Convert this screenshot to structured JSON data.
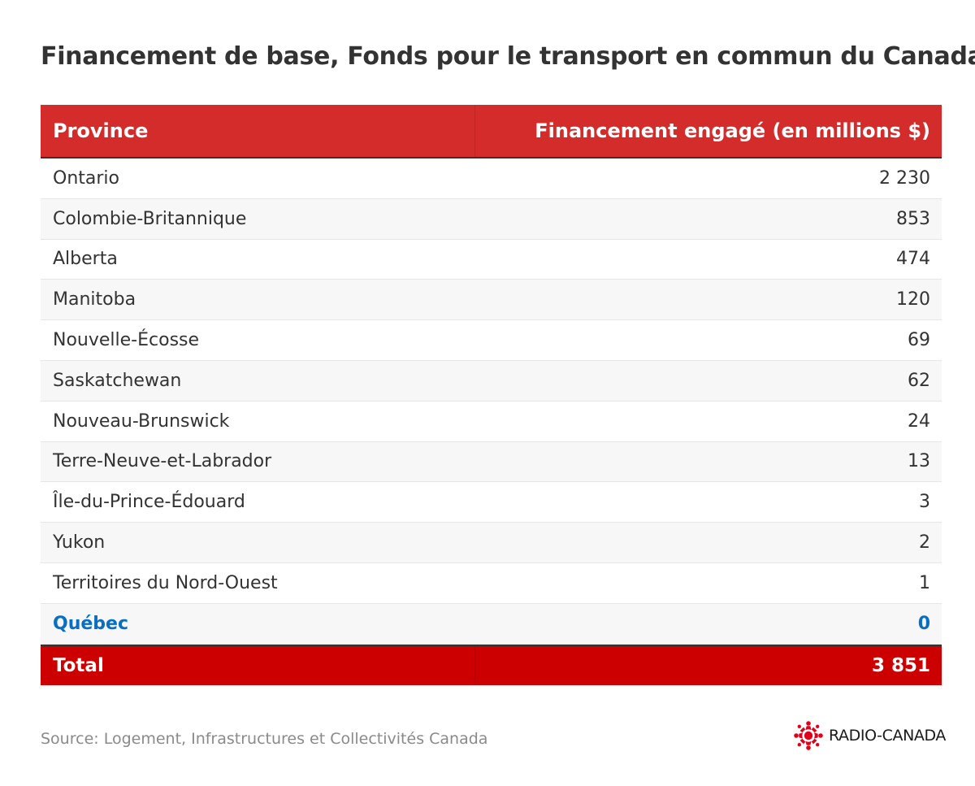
{
  "chart_data": {
    "type": "table",
    "title": "Financement de base, Fonds pour le transport en commun du Canada",
    "columns": [
      "Province",
      "Financement engagé (en millions $)"
    ],
    "rows": [
      {
        "label": "Ontario",
        "value": "2 230"
      },
      {
        "label": "Colombie-Britannique",
        "value": "853"
      },
      {
        "label": "Alberta",
        "value": "474"
      },
      {
        "label": "Manitoba",
        "value": "120"
      },
      {
        "label": "Nouvelle-Écosse",
        "value": "69"
      },
      {
        "label": "Saskatchewan",
        "value": "62"
      },
      {
        "label": "Nouveau-Brunswick",
        "value": "24"
      },
      {
        "label": "Terre-Neuve-et-Labrador",
        "value": "13"
      },
      {
        "label": "Île-du-Prince-Édouard",
        "value": "3"
      },
      {
        "label": "Yukon",
        "value": "2"
      },
      {
        "label": "Territoires du Nord-Ouest",
        "value": "1"
      },
      {
        "label": "Québec",
        "value": "0",
        "highlight": true
      }
    ],
    "total": {
      "label": "Total",
      "value": "3 851"
    },
    "source": "Source: Logement, Infrastructures et Collectivités Canada"
  },
  "logo": {
    "text": "RADIO-CANADA",
    "icon": "radio-canada-gem-icon"
  },
  "colors": {
    "header": "#d42b2b",
    "total": "#cc0000",
    "highlight": "#0a6fc2",
    "text": "#333333",
    "source": "#8a8a8a"
  }
}
